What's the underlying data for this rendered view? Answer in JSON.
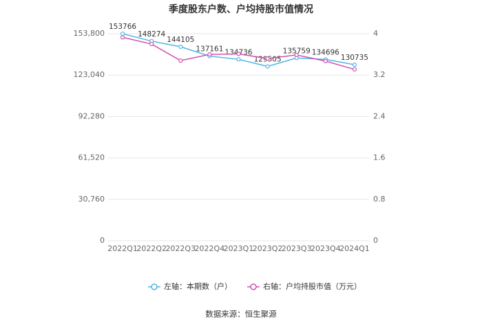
{
  "chart_data": {
    "type": "line",
    "title": "季度股东户数、户均持股市值情况",
    "categories": [
      "2022Q1",
      "2022Q2",
      "2022Q3",
      "2022Q4",
      "2023Q1",
      "2023Q2",
      "2023Q3",
      "2023Q4",
      "2024Q1"
    ],
    "series": [
      {
        "name": "左轴：本期数（户）",
        "color": "#4db3e6",
        "values": [
          153766,
          148274,
          144105,
          137161,
          134736,
          129505,
          135759,
          134696,
          130735
        ]
      },
      {
        "name": "右轴：户均持股市值（万元）",
        "color": "#d24fae",
        "axis": "y2",
        "values": [
          3.93,
          3.8,
          3.48,
          3.6,
          3.61,
          3.52,
          3.59,
          3.47,
          3.31
        ]
      }
    ],
    "ylim": [
      0,
      153800
    ],
    "yticks": [
      0,
      {
        "value": 30760,
        "label": "30,760"
      },
      {
        "value": 61520,
        "label": "61,520"
      },
      {
        "value": 92280,
        "label": "92,280"
      },
      {
        "value": 123040,
        "label": "123,040"
      },
      {
        "value": 153800,
        "label": "153,800"
      }
    ],
    "y2lim": [
      0,
      4
    ],
    "y2ticks": [
      0,
      0.8,
      1.6,
      2.4,
      3.2,
      4
    ],
    "grid": true,
    "legend": "bottom",
    "source": "数据来源：恒生聚源"
  }
}
